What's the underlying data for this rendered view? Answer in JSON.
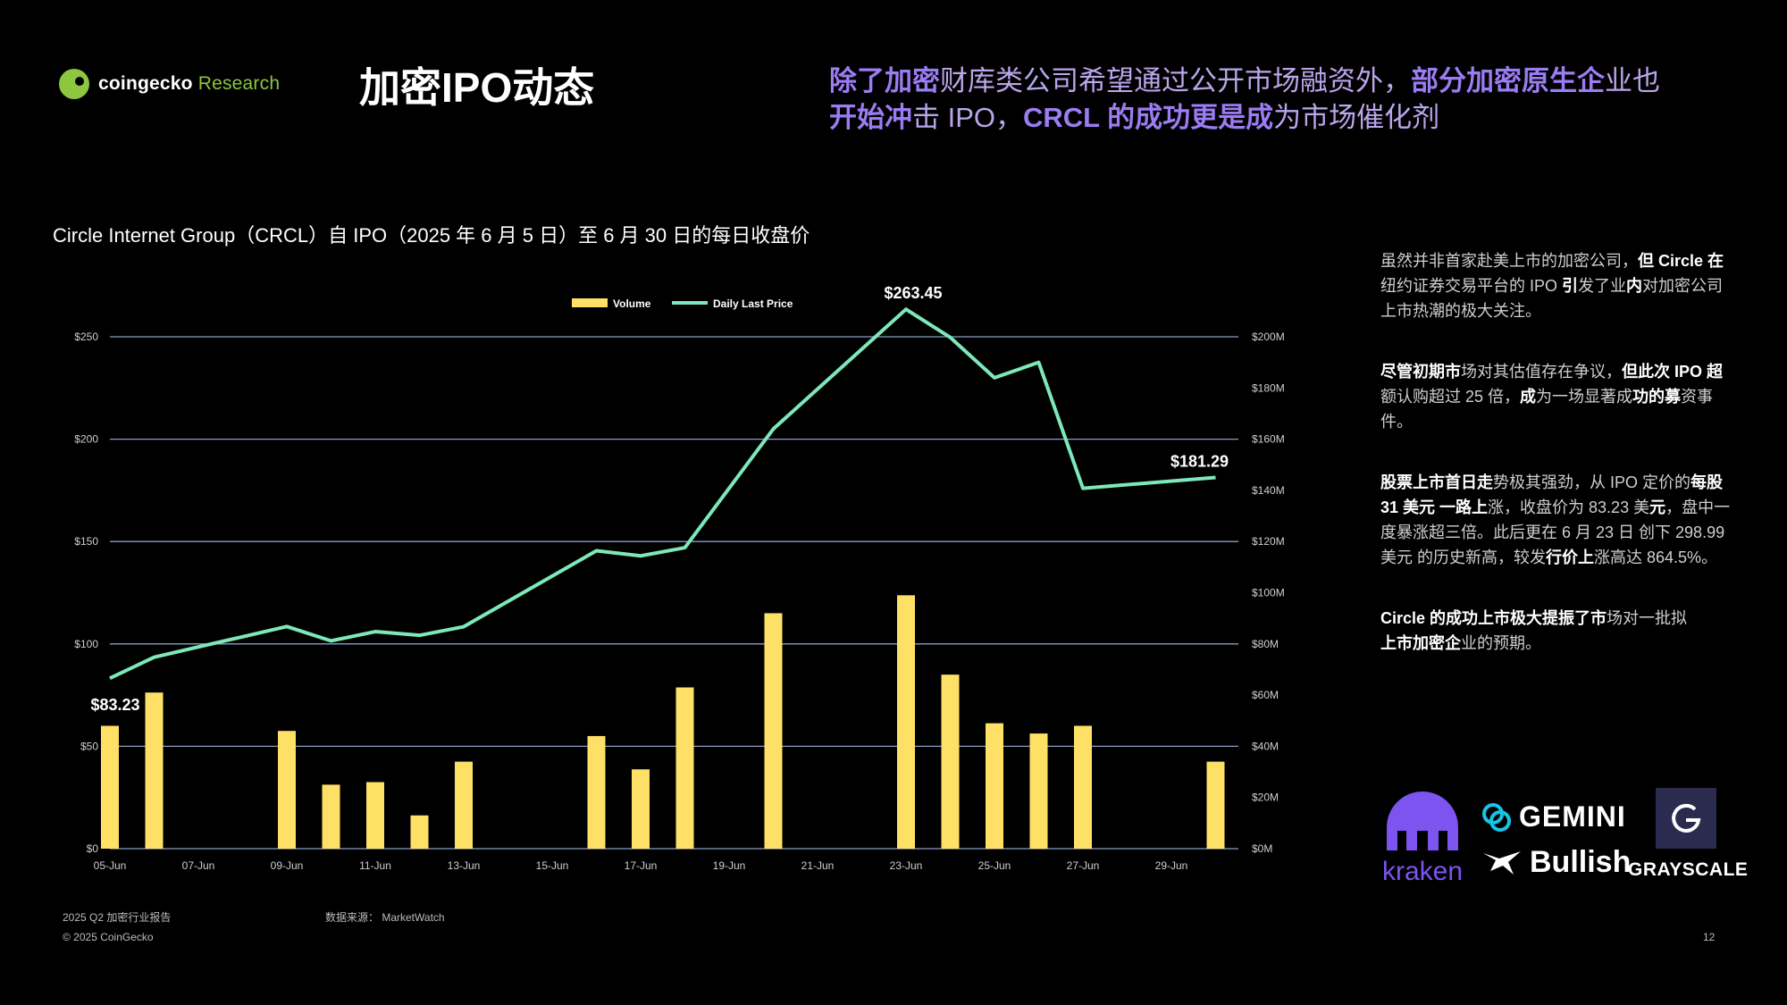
{
  "header": {
    "logo_brand": "coingecko",
    "logo_research": "Research",
    "title": "加密IPO动态",
    "subtitle_p1": "除了加密",
    "subtitle_p2": "财库类公司希望通过公开市场融资外，",
    "subtitle_p3": "部分加密原生企",
    "subtitle_p4": "业也",
    "subtitle_p5": "开始冲",
    "subtitle_p6": "击 IPO，",
    "subtitle_p7": "CRCL 的成功更是成",
    "subtitle_p8": "为市场催化剂"
  },
  "chart_heading": "Circle Internet Group（CRCL）自 IPO（2025 年 6 月 5 日）至 6 月 30 日的每日收盘价",
  "chart_data": {
    "type": "bar+line",
    "x": [
      "05-Jun",
      "06-Jun",
      "07-Jun",
      "08-Jun",
      "09-Jun",
      "10-Jun",
      "11-Jun",
      "12-Jun",
      "13-Jun",
      "14-Jun",
      "15-Jun",
      "16-Jun",
      "17-Jun",
      "18-Jun",
      "19-Jun",
      "20-Jun",
      "21-Jun",
      "22-Jun",
      "23-Jun",
      "24-Jun",
      "25-Jun",
      "26-Jun",
      "27-Jun",
      "28-Jun",
      "29-Jun",
      "30-Jun"
    ],
    "x_tick_labels": [
      "05-Jun",
      "07-Jun",
      "09-Jun",
      "11-Jun",
      "13-Jun",
      "15-Jun",
      "17-Jun",
      "19-Jun",
      "21-Jun",
      "23-Jun",
      "25-Jun",
      "27-Jun",
      "29-Jun"
    ],
    "series": [
      {
        "name": "Volume",
        "type": "bar",
        "axis": "right",
        "color": "#ffe066",
        "values": [
          48,
          61,
          null,
          null,
          46,
          25,
          26,
          13,
          34,
          null,
          null,
          44,
          31,
          63,
          null,
          92,
          null,
          null,
          99,
          68,
          49,
          45,
          48,
          null,
          null,
          34
        ]
      },
      {
        "name": "Daily Last Price",
        "type": "line",
        "axis": "left",
        "color": "#7de8b9",
        "values": [
          83.23,
          93.5,
          98.5,
          103.5,
          108.5,
          101.5,
          106,
          104.2,
          108.4,
          null,
          null,
          145.5,
          143,
          147,
          null,
          205,
          null,
          null,
          263.45,
          249.7,
          230,
          237.5,
          176,
          null,
          null,
          181.29
        ]
      }
    ],
    "left_axis": {
      "min": 0,
      "max": 250,
      "ticks": [
        "$0",
        "$50",
        "$100",
        "$150",
        "$200",
        "$250"
      ]
    },
    "right_axis": {
      "min": 0,
      "max": 200,
      "ticks": [
        "$0M",
        "$20M",
        "$40M",
        "$60M",
        "$80M",
        "$100M",
        "$120M",
        "$140M",
        "$160M",
        "$180M",
        "$200M"
      ]
    },
    "annotations": [
      {
        "label": "$83.23",
        "x": "05-Jun",
        "y": 83.23
      },
      {
        "label": "$263.45",
        "x": "23-Jun",
        "y": 263.45
      },
      {
        "label": "$181.29",
        "x": "30-Jun",
        "y": 181.29
      }
    ],
    "legend": [
      {
        "name": "Volume",
        "color": "#ffe066"
      },
      {
        "name": "Daily Last Price",
        "color": "#7de8b9"
      }
    ],
    "legend_position": "top-center",
    "grid": true
  },
  "side": {
    "p1_a": "虽然并非首家赴美上市的加密公司，",
    "p1_b": "但 Circle 在",
    "p1_c": "纽约证券交易平台的 IPO ",
    "p1_d": "引",
    "p1_e": "发了业",
    "p1_f": "内",
    "p1_g": "对加密公司上市热潮的极大关注。",
    "p2_a": "尽管初期市",
    "p2_b": "场对其估值存在争议，",
    "p2_c": "但此次 IPO 超",
    "p2_d": "额认购超过 25 倍，",
    "p2_e": "成",
    "p2_f": "为一场显著成",
    "p2_g": "功的募",
    "p2_h": "资事件。",
    "p3_a": "股票上市首日走",
    "p3_b": "势极其强劲，从 IPO 定价的",
    "p3_c": "每股 31 美元 一路上",
    "p3_d": "涨，收盘价为 83.23 美",
    "p3_e": "元",
    "p3_f": "，盘中一度暴涨超三倍。此后更在 6 月 23 日 创下 298.99 美元 的",
    "p3_g": "历史新高，较发",
    "p3_h": "行价上",
    "p3_i": "涨高达 864.5%。",
    "p4_a": "Circle 的成功上市极大提振了市",
    "p4_b": "场对一批拟",
    "p4_c": "上市加密企",
    "p4_d": "业的预期。"
  },
  "logos": {
    "kraken": "kraken",
    "gemini": "GEMINI",
    "bullish": "Bullish",
    "grayscale": "GRAYSCALE"
  },
  "footer": {
    "report": "2025 Q2 加密行业报告",
    "copyright": "© 2025 CoinGecko",
    "source": "数据来源： MarketWatch",
    "page": "12"
  }
}
